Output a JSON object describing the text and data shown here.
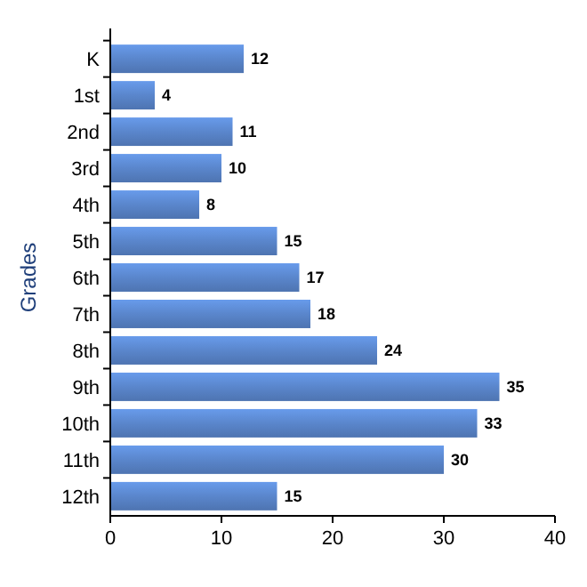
{
  "chart_data": {
    "type": "bar",
    "orientation": "horizontal",
    "ylabel": "Grades",
    "categories": [
      "K",
      "1st",
      "2nd",
      "3rd",
      "4th",
      "5th",
      "6th",
      "7th",
      "8th",
      "9th",
      "10th",
      "11th",
      "12th"
    ],
    "values": [
      12,
      4,
      11,
      10,
      8,
      15,
      17,
      18,
      24,
      35,
      33,
      30,
      15
    ],
    "color": "#5a86cc",
    "xlim": [
      0,
      40
    ],
    "xticks": [
      0,
      10,
      20,
      30,
      40
    ],
    "data_labels": true
  }
}
